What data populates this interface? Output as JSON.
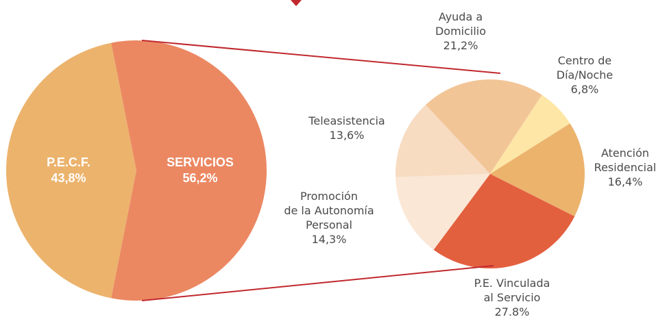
{
  "chart_data": [
    {
      "type": "pie",
      "categories": [
        "P.E.C.F.",
        "SERVICIOS"
      ],
      "values": [
        43.8,
        56.2
      ],
      "value_labels": [
        "43,8%",
        "56,2%"
      ],
      "colors": [
        "#ecb36d",
        "#eb8862"
      ]
    },
    {
      "type": "pie",
      "categories": [
        "Ayuda a\nDomicilio",
        "Centro de\nDía/Noche",
        "Atención\nResidencial",
        "P.E. Vinculada\nal Servicio",
        "Promoción\nde la Autonomía\nPersonal",
        "Teleasistencia"
      ],
      "values": [
        21.2,
        6.8,
        16.4,
        27.8,
        14.3,
        13.6
      ],
      "value_labels": [
        "21,2%",
        "6,8%",
        "16,4%",
        "27.8%",
        "14,3%",
        "13,6%"
      ],
      "colors": [
        "#f2c597",
        "#fde6a6",
        "#ecb36d",
        "#e3603f",
        "#fbe7d6",
        "#f7dcc2"
      ]
    }
  ]
}
